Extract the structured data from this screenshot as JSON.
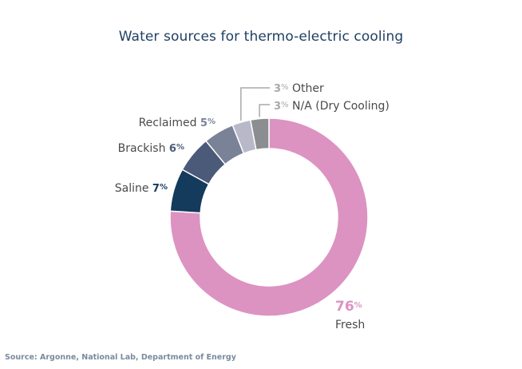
{
  "title": "Water sources for thermo-electric cooling",
  "source": "Source: Argonne, National Lab, Department of Energy",
  "chart_data": {
    "type": "pie",
    "donut": true,
    "title": "Water sources for thermo-electric cooling",
    "slices": [
      {
        "label": "Fresh",
        "value": 76,
        "color": "#dc93c1"
      },
      {
        "label": "Saline",
        "value": 7,
        "color": "#143a5c"
      },
      {
        "label": "Brackish",
        "value": 6,
        "color": "#4a5a78"
      },
      {
        "label": "Reclaimed",
        "value": 5,
        "color": "#7a8298"
      },
      {
        "label": "Other",
        "value": 3,
        "color": "#b7b9c9"
      },
      {
        "label": "N/A (Dry Cooling)",
        "value": 3,
        "color": "#8b8d90"
      }
    ],
    "label_colors": {
      "Fresh": "#dc93c1",
      "Saline": "#143a5c",
      "Brackish": "#4a5a78",
      "Reclaimed": "#7a8298",
      "Other": "#a9a9ad",
      "N/A (Dry Cooling)": "#a9a9ad"
    }
  }
}
